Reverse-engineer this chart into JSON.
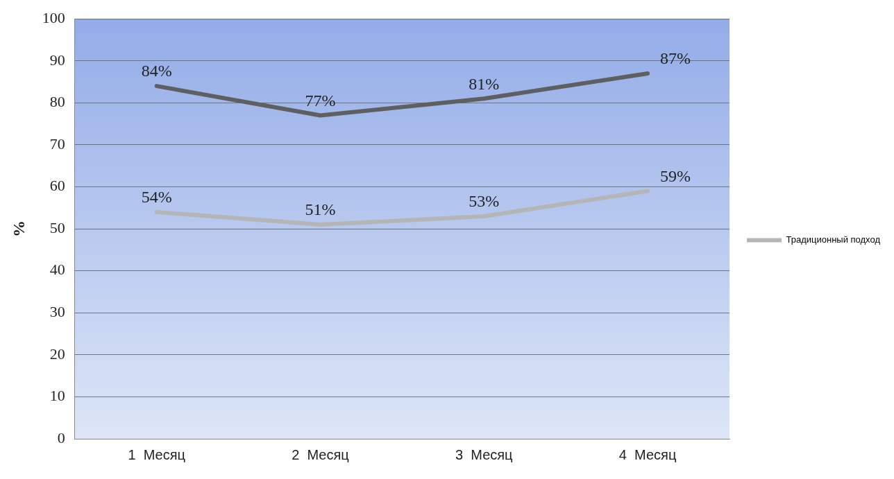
{
  "chart_data": {
    "type": "line",
    "ylabel": "%",
    "categories": [
      "1  Месяц",
      "2  Месяц",
      "3  Месяц",
      "4  Месяц"
    ],
    "series": [
      {
        "color": "#5e5f61",
        "values": [
          84,
          77,
          81,
          87
        ],
        "value_labels": [
          "84%",
          "77%",
          "81%",
          "87%"
        ]
      },
      {
        "name": "Традиционный подход",
        "color": "#b5b5b5",
        "values": [
          54,
          51,
          53,
          59
        ],
        "value_labels": [
          "54%",
          "51%",
          "53%",
          "59%"
        ]
      }
    ],
    "ylim": [
      0,
      100
    ],
    "yticks": [
      0,
      10,
      20,
      30,
      40,
      50,
      60,
      70,
      80,
      90,
      100
    ],
    "grid": "y",
    "legend": "right",
    "marker": "none",
    "line_style": "solid"
  }
}
